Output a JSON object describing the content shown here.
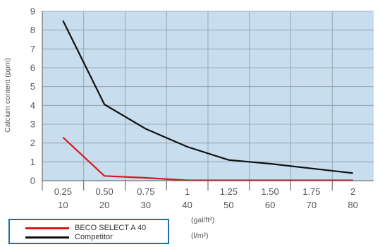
{
  "chart_data": {
    "type": "line",
    "ylabel": "Calcium content (ppm)",
    "x_units": [
      "(gal/ft²)",
      "(l/m²)"
    ],
    "x_ticks_primary": [
      "0.25",
      "0.50",
      "0.75",
      "1",
      "1.25",
      "1.50",
      "1.75",
      "2"
    ],
    "x_ticks_secondary": [
      "10",
      "20",
      "30",
      "40",
      "50",
      "60",
      "70",
      "80"
    ],
    "x": [
      0.25,
      0.5,
      0.75,
      1,
      1.25,
      1.5,
      1.75,
      2
    ],
    "xlim": [
      0.125,
      2.125
    ],
    "ylim": [
      0,
      9
    ],
    "y_ticks": [
      0,
      1,
      2,
      3,
      4,
      5,
      6,
      7,
      8,
      9
    ],
    "grid": true,
    "legend_position": "bottom-left",
    "series": [
      {
        "name": "BECO SELECT A 40",
        "color": "#d7191c",
        "values": [
          2.3,
          0.25,
          0.15,
          0.02,
          0.02,
          0.02,
          0.02,
          0.02
        ]
      },
      {
        "name": "Competitor",
        "color": "#111111",
        "values": [
          8.5,
          4.05,
          2.75,
          1.8,
          1.1,
          0.9,
          0.65,
          0.4
        ]
      }
    ],
    "plot_background": "#c8dded",
    "grid_color": "#8c9aa6"
  }
}
